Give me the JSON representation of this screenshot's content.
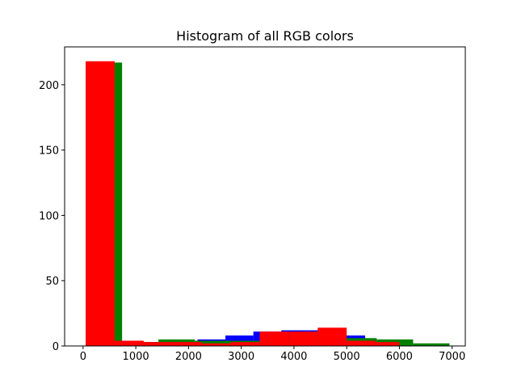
{
  "chart_data": {
    "type": "bar",
    "title": "Histogram of all RGB colors",
    "xlabel": "",
    "ylabel": "",
    "xlim": [
      -350,
      7250
    ],
    "ylim": [
      0,
      229
    ],
    "xticks": [
      0,
      1000,
      2000,
      3000,
      4000,
      5000,
      6000,
      7000
    ],
    "yticks": [
      0,
      50,
      100,
      150,
      200
    ],
    "grid": false,
    "legend": "none",
    "series": [
      {
        "color": "#0000ff",
        "bins": [
          {
            "x0": 50,
            "x1": 580,
            "count": 217
          },
          {
            "x0": 580,
            "x1": 1110,
            "count": 4
          },
          {
            "x0": 1110,
            "x1": 1640,
            "count": 3
          },
          {
            "x0": 1640,
            "x1": 2170,
            "count": 3
          },
          {
            "x0": 2170,
            "x1": 2700,
            "count": 5
          },
          {
            "x0": 2700,
            "x1": 3230,
            "count": 8
          },
          {
            "x0": 3230,
            "x1": 3760,
            "count": 11
          },
          {
            "x0": 3760,
            "x1": 4290,
            "count": 12
          },
          {
            "x0": 4290,
            "x1": 4820,
            "count": 12
          },
          {
            "x0": 4820,
            "x1": 5350,
            "count": 8
          }
        ]
      },
      {
        "color": "#008000",
        "bins": [
          {
            "x0": 50,
            "x1": 740,
            "count": 217
          },
          {
            "x0": 740,
            "x1": 1430,
            "count": 3
          },
          {
            "x0": 1430,
            "x1": 2120,
            "count": 5
          },
          {
            "x0": 2120,
            "x1": 2810,
            "count": 4
          },
          {
            "x0": 2810,
            "x1": 3500,
            "count": 4
          },
          {
            "x0": 3500,
            "x1": 4190,
            "count": 5
          },
          {
            "x0": 4190,
            "x1": 4880,
            "count": 6
          },
          {
            "x0": 4880,
            "x1": 5570,
            "count": 6
          },
          {
            "x0": 5570,
            "x1": 6260,
            "count": 5
          },
          {
            "x0": 6260,
            "x1": 6950,
            "count": 2
          }
        ]
      },
      {
        "color": "#ff0000",
        "bins": [
          {
            "x0": 50,
            "x1": 600,
            "count": 218
          },
          {
            "x0": 600,
            "x1": 1150,
            "count": 4
          },
          {
            "x0": 1150,
            "x1": 1700,
            "count": 3
          },
          {
            "x0": 1700,
            "x1": 2250,
            "count": 3
          },
          {
            "x0": 2250,
            "x1": 2800,
            "count": 2
          },
          {
            "x0": 2800,
            "x1": 3350,
            "count": 3
          },
          {
            "x0": 3350,
            "x1": 3900,
            "count": 11
          },
          {
            "x0": 3900,
            "x1": 4450,
            "count": 11
          },
          {
            "x0": 4450,
            "x1": 5000,
            "count": 14
          },
          {
            "x0": 5000,
            "x1": 5550,
            "count": 4
          },
          {
            "x0": 5550,
            "x1": 6000,
            "count": 3
          }
        ]
      }
    ]
  }
}
